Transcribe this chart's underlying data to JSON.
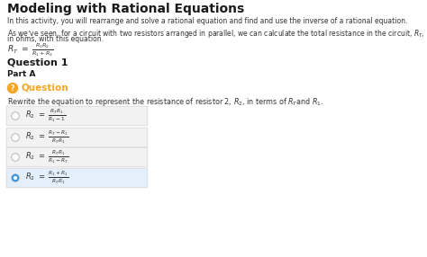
{
  "title": "Modeling with Rational Equations",
  "subtitle": "In this activity, you will rearrange and solve a rational equation and find and use the inverse of a rational equation.",
  "para_line1": "As we’ve seen, for a circuit with two resistors arranged in parallel, we can calculate the total resistance in the circuit, $R_T$,",
  "para_line2": "in ohms, with this equation.",
  "main_eq": "$R_T\\ =\\ \\dfrac{R_1 R_2}{R_1 + R_2}$",
  "section1": "Question 1",
  "section2": "Part A",
  "question_text": "Rewrite the equation to represent the resistance of resistor 2, $R_2$, in terms of $R_T$and $R_1$.",
  "options": [
    {
      "eq": "$R_2\\ =\\ \\dfrac{R_T R_1}{R_1\\ -\\ 1}$",
      "selected": false
    },
    {
      "eq": "$R_2\\ =\\ \\dfrac{R_T\\ -\\ R_1}{R_T R_1}$",
      "selected": false
    },
    {
      "eq": "$R_2\\ =\\ \\dfrac{R_T R_1}{R_1\\ -\\ R_T}$",
      "selected": false
    },
    {
      "eq": "$R_2\\ =\\ \\dfrac{R_1\\ +\\ R_1}{R_T R_1}$",
      "selected": true
    }
  ],
  "bg_color": "#ffffff",
  "option_box_color": "#f2f2f2",
  "option_box_selected_color": "#e3f0fb",
  "question_icon_color": "#f5a623",
  "selected_dot_color": "#2196F3",
  "title_color": "#1a1a1a",
  "text_color": "#333333",
  "option_border_color": "#d8d8d8"
}
